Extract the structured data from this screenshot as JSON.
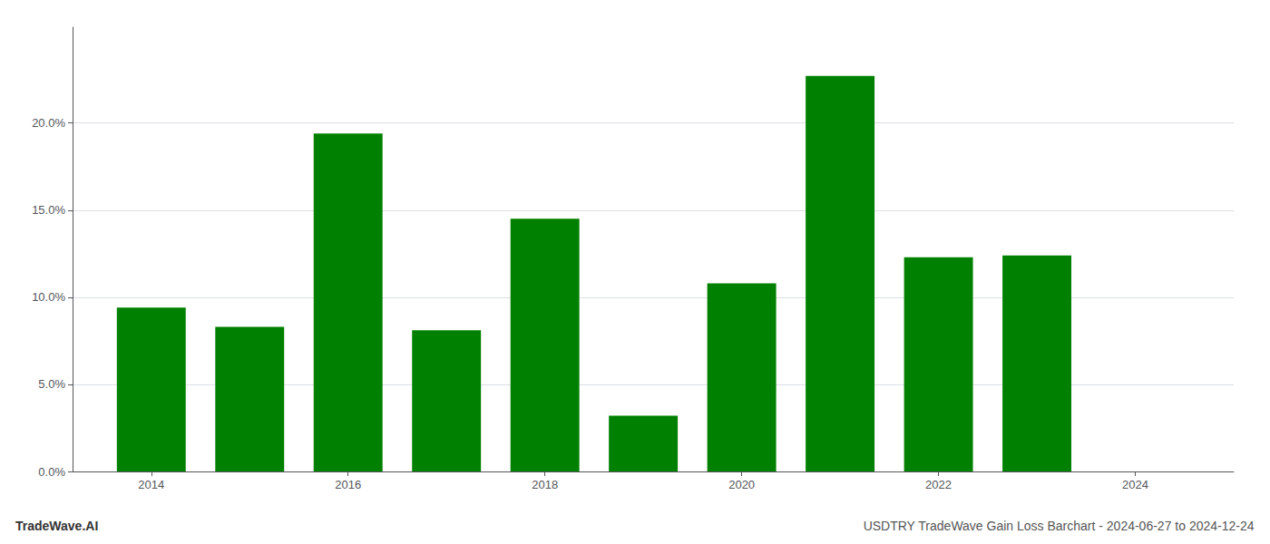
{
  "chart_data": {
    "type": "bar",
    "title": "USDTRY TradeWave Gain Loss Barchart - 2024-06-27 to 2024-12-24",
    "annotations": [
      "TradeWave.AI"
    ],
    "x": [
      2014,
      2015,
      2016,
      2017,
      2018,
      2019,
      2020,
      2021,
      2022,
      2023
    ],
    "values": [
      0.094,
      0.083,
      0.194,
      0.081,
      0.145,
      0.032,
      0.108,
      0.227,
      0.123,
      0.124
    ],
    "color": "#008000",
    "xlim": [
      2013.2,
      2025.0
    ],
    "xticks": [
      2014,
      2016,
      2018,
      2020,
      2022,
      2024
    ],
    "ylim": [
      0,
      0.255
    ],
    "yticks": [
      {
        "value": 0.0,
        "label": "0.0%"
      },
      {
        "value": 0.05,
        "label": "5.0%"
      },
      {
        "value": 0.1,
        "label": "10.0%"
      },
      {
        "value": 0.15,
        "label": "15.0%"
      },
      {
        "value": 0.2,
        "label": "20.0%"
      }
    ],
    "grid": true
  }
}
